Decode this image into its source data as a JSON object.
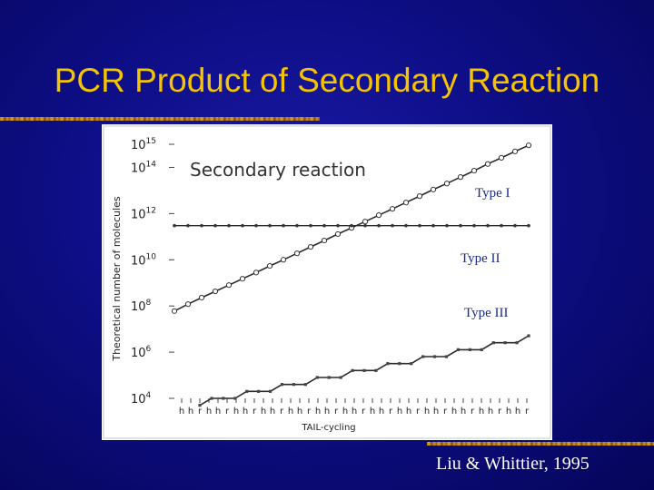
{
  "slide": {
    "title": "PCR Product of Secondary Reaction",
    "citation": "Liu & Whittier, 1995"
  },
  "colors": {
    "background": "#0e0e86",
    "title": "#f5c400",
    "rule": "#c89030",
    "chart_background": "#ffffff",
    "series_line": "#2a2a2a",
    "annotation": "#1a2a8a",
    "citation": "#ffffff"
  },
  "chart_data": {
    "type": "line",
    "title": "Secondary reaction",
    "xlabel": "TAIL-cycling",
    "ylabel": "Theoretical number of molecules",
    "y_scale": "log",
    "ylim": [
      10000,
      1000000000000000
    ],
    "y_ticks": [
      {
        "value": 1000000000000000,
        "label": "10",
        "exp": "15"
      },
      {
        "value": 100000000000000,
        "label": "10",
        "exp": "14"
      },
      {
        "value": 1000000000000,
        "label": "10",
        "exp": "12"
      },
      {
        "value": 10000000000,
        "label": "10",
        "exp": "10"
      },
      {
        "value": 100000000,
        "label": "10",
        "exp": "8"
      },
      {
        "value": 1000000,
        "label": "10",
        "exp": "6"
      },
      {
        "value": 10000,
        "label": "10",
        "exp": "4"
      }
    ],
    "x_ticks": [
      "h",
      "h",
      "r",
      "h",
      "h",
      "r",
      "h",
      "h",
      "r",
      "h",
      "h",
      "r",
      "h",
      "h",
      "r",
      "h",
      "h",
      "r",
      "h",
      "h",
      "r",
      "h",
      "h",
      "r",
      "h",
      "h",
      "r",
      "h",
      "h",
      "r",
      "h",
      "h",
      "r",
      "h",
      "h",
      "r",
      "h",
      "h",
      "r"
    ],
    "grid": false,
    "series": [
      {
        "name": "Type I",
        "values": [
          60000000.0,
          120000000.0,
          230000000.0,
          430000000.0,
          800000000.0,
          1500000000.0,
          2800000000.0,
          5400000000.0,
          10000000000.0,
          19000000000.0,
          36000000000.0,
          68000000000.0,
          130000000000.0,
          240000000000.0,
          450000000000.0,
          850000000000.0,
          1600000000000.0,
          3000000000000.0,
          5700000000000.0,
          11000000000000.0,
          20000000000000.0,
          38000000000000.0,
          72000000000000.0,
          140000000000000.0,
          260000000000000.0,
          490000000000000.0,
          900000000000000.0
        ]
      },
      {
        "name": "Type II",
        "values": [
          300000000000.0,
          300000000000.0,
          300000000000.0,
          300000000000.0,
          300000000000.0,
          300000000000.0,
          300000000000.0,
          300000000000.0,
          300000000000.0,
          300000000000.0,
          300000000000.0,
          300000000000.0,
          300000000000.0,
          300000000000.0,
          300000000000.0,
          300000000000.0,
          300000000000.0,
          300000000000.0,
          300000000000.0,
          300000000000.0,
          300000000000.0,
          300000000000.0,
          300000000000.0,
          300000000000.0,
          300000000000.0,
          300000000000.0,
          300000000000.0
        ]
      },
      {
        "name": "Type III",
        "values": [
          5000,
          10000,
          10000,
          10000,
          20000,
          20000,
          20000,
          40000,
          40000,
          40000,
          80000,
          80000,
          80000,
          160000,
          160000,
          160000,
          320000,
          320000,
          320000,
          640000,
          640000,
          640000,
          1280000,
          1280000,
          1280000,
          2560000,
          2560000,
          2560000,
          5120000
        ]
      }
    ],
    "annotations": [
      "Type I",
      "Type II",
      "Type III"
    ]
  }
}
